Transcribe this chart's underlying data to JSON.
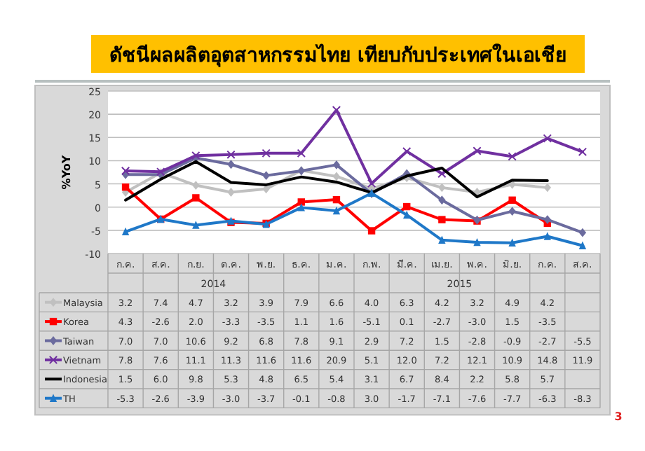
{
  "chart_data": {
    "type": "line",
    "title": "ดัชนีผลผลิตอุตสาหกรรมไทย เทียบกับประเทศในเอเชีย",
    "ylabel": "%YoY",
    "categories": [
      "ก.ค.",
      "ส.ค.",
      "ก.ย.",
      "ต.ค.",
      "พ.ย.",
      "ธ.ค.",
      "ม.ค.",
      "ก.พ.",
      "มี.ค.",
      "เม.ย.",
      "พ.ค.",
      "มิ.ย.",
      "ก.ค.",
      "ส.ค."
    ],
    "ylim": [
      -10,
      25
    ],
    "yticks": [
      -10,
      -5,
      0,
      5,
      10,
      15,
      20,
      25
    ],
    "grid": "y",
    "legend": "bottom",
    "annotations": [
      "2014",
      "2015",
      "3"
    ],
    "series": [
      {
        "name": "Malaysia",
        "color": "#c0c0c0",
        "marker": "diamond",
        "values": [
          3.2,
          7.4,
          4.7,
          3.2,
          3.9,
          7.9,
          6.6,
          4.0,
          6.3,
          4.2,
          3.2,
          4.9,
          4.2,
          null
        ],
        "value_labels": [
          "3.2",
          "7.4",
          "4.7",
          "3.2",
          "3.9",
          "7.9",
          "6.6",
          "4.0",
          "6.3",
          "4.2",
          "3.2",
          "4.9",
          "4.2",
          null
        ]
      },
      {
        "name": "Korea",
        "color": "#ff0000",
        "marker": "square",
        "values": [
          4.3,
          -2.6,
          2.0,
          -3.3,
          -3.5,
          1.1,
          1.6,
          -5.1,
          0.1,
          -2.7,
          -3.0,
          1.5,
          -3.5,
          null
        ],
        "value_labels": [
          "4.3",
          "-2.6",
          "2.0",
          "-3.3",
          "-3.5",
          "1.1",
          "1.6",
          "-5.1",
          "0.1",
          "-2.7",
          "-3.0",
          "1.5",
          "-3.5",
          null
        ]
      },
      {
        "name": "Taiwan",
        "color": "#6b6b9e",
        "marker": "diamond",
        "values": [
          7.0,
          7.0,
          10.6,
          9.2,
          6.8,
          7.8,
          9.1,
          2.9,
          7.2,
          1.5,
          -2.8,
          -0.9,
          -2.7,
          -5.5
        ],
        "value_labels": [
          "7.0",
          "7.0",
          "10.6",
          "9.2",
          "6.8",
          "7.8",
          "9.1",
          "2.9",
          "7.2",
          "1.5",
          "-2.8",
          "-0.9",
          "-2.7",
          "-5.5"
        ]
      },
      {
        "name": "Vietnam",
        "color": "#7030a0",
        "marker": "cross",
        "values": [
          7.8,
          7.6,
          11.1,
          11.3,
          11.6,
          11.6,
          20.9,
          5.1,
          12.0,
          7.2,
          12.1,
          10.9,
          14.8,
          11.9
        ],
        "value_labels": [
          "7.8",
          "7.6",
          "11.1",
          "11.3",
          "11.6",
          "11.6",
          "20.9",
          "5.1",
          "12.0",
          "7.2",
          "12.1",
          "10.9",
          "14.8",
          "11.9"
        ]
      },
      {
        "name": "Indonesia",
        "color": "#000000",
        "marker": "none",
        "values": [
          1.5,
          6.0,
          9.8,
          5.3,
          4.8,
          6.5,
          5.4,
          3.1,
          6.7,
          8.4,
          2.2,
          5.8,
          5.7,
          null
        ],
        "value_labels": [
          "1.5",
          "6.0",
          "9.8",
          "5.3",
          "4.8",
          "6.5",
          "5.4",
          "3.1",
          "6.7",
          "8.4",
          "2.2",
          "5.8",
          "5.7",
          null
        ]
      },
      {
        "name": "TH",
        "color": "#1f78c8",
        "marker": "triangle",
        "values": [
          -5.3,
          -2.6,
          -3.9,
          -3.0,
          -3.7,
          -0.1,
          -0.8,
          3.0,
          -1.7,
          -7.1,
          -7.6,
          -7.7,
          -6.3,
          -8.3
        ],
        "value_labels": [
          "-5.3",
          "-2.6",
          "-3.9",
          "-3.0",
          "-3.7",
          "-0.1",
          "-0.8",
          "3.0",
          "-1.7",
          "-7.1",
          "-7.6",
          "-7.7",
          "-6.3",
          "-8.3"
        ]
      }
    ]
  }
}
